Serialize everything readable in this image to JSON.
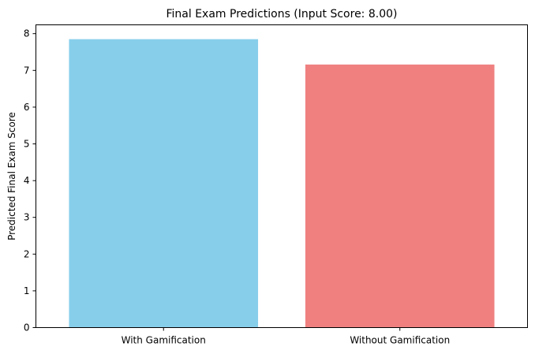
{
  "chart_data": {
    "type": "bar",
    "title": "Final Exam Predictions (Input Score: 8.00)",
    "xlabel": "",
    "ylabel": "Predicted Final Exam Score",
    "categories": [
      "With Gamification",
      "Without Gamification"
    ],
    "values": [
      7.85,
      7.16
    ],
    "colors": [
      "#87CEEB",
      "#F08080"
    ],
    "ylim": [
      0,
      8.24
    ],
    "yticks": [
      0,
      1,
      2,
      3,
      4,
      5,
      6,
      7,
      8
    ],
    "grid": false,
    "legend": "none"
  }
}
